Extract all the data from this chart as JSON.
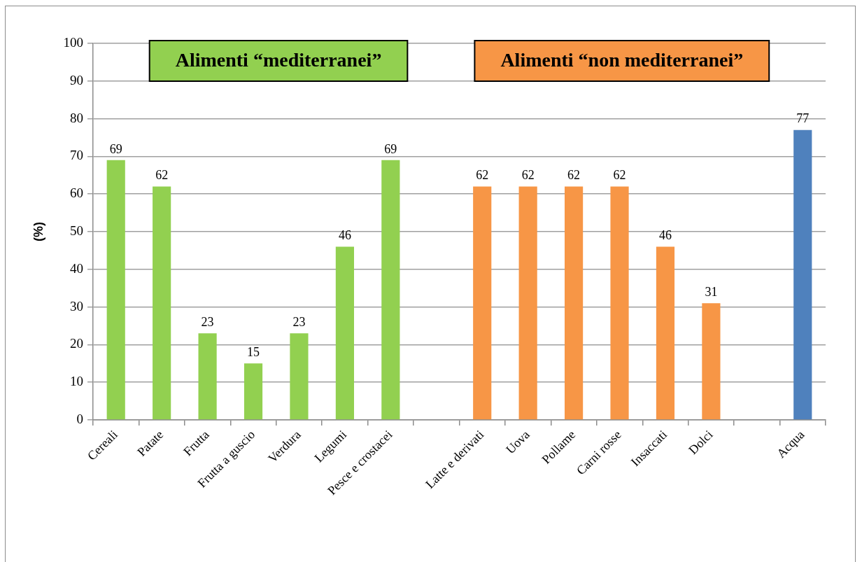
{
  "chart_data": {
    "type": "bar",
    "ylabel": "(%)",
    "annotations": [
      "Alimenti “mediterranei”",
      "Alimenti “non mediterranei”"
    ],
    "categories": [
      "Cereali",
      "Patate",
      "Frutta",
      "Frutta a guscio",
      "Verdura",
      "Legumi",
      "Pesce e crostacei",
      null,
      "Latte e derivati",
      "Uova",
      "Pollame",
      "Carni rosse",
      "Insaccati",
      "Dolci",
      null,
      "Acqua"
    ],
    "values": [
      69,
      62,
      23,
      15,
      23,
      46,
      69,
      null,
      62,
      62,
      62,
      62,
      46,
      31,
      null,
      77
    ],
    "colors": [
      "#92d050",
      "#92d050",
      "#92d050",
      "#92d050",
      "#92d050",
      "#92d050",
      "#92d050",
      null,
      "#f79646",
      "#f79646",
      "#f79646",
      "#f79646",
      "#f79646",
      "#f79646",
      null,
      "#4f81bd"
    ],
    "ylim": [
      0,
      100
    ],
    "yticks": [
      0,
      10,
      20,
      30,
      40,
      50,
      60,
      70,
      80,
      90,
      100
    ],
    "grid": "y",
    "data_labels": true
  }
}
